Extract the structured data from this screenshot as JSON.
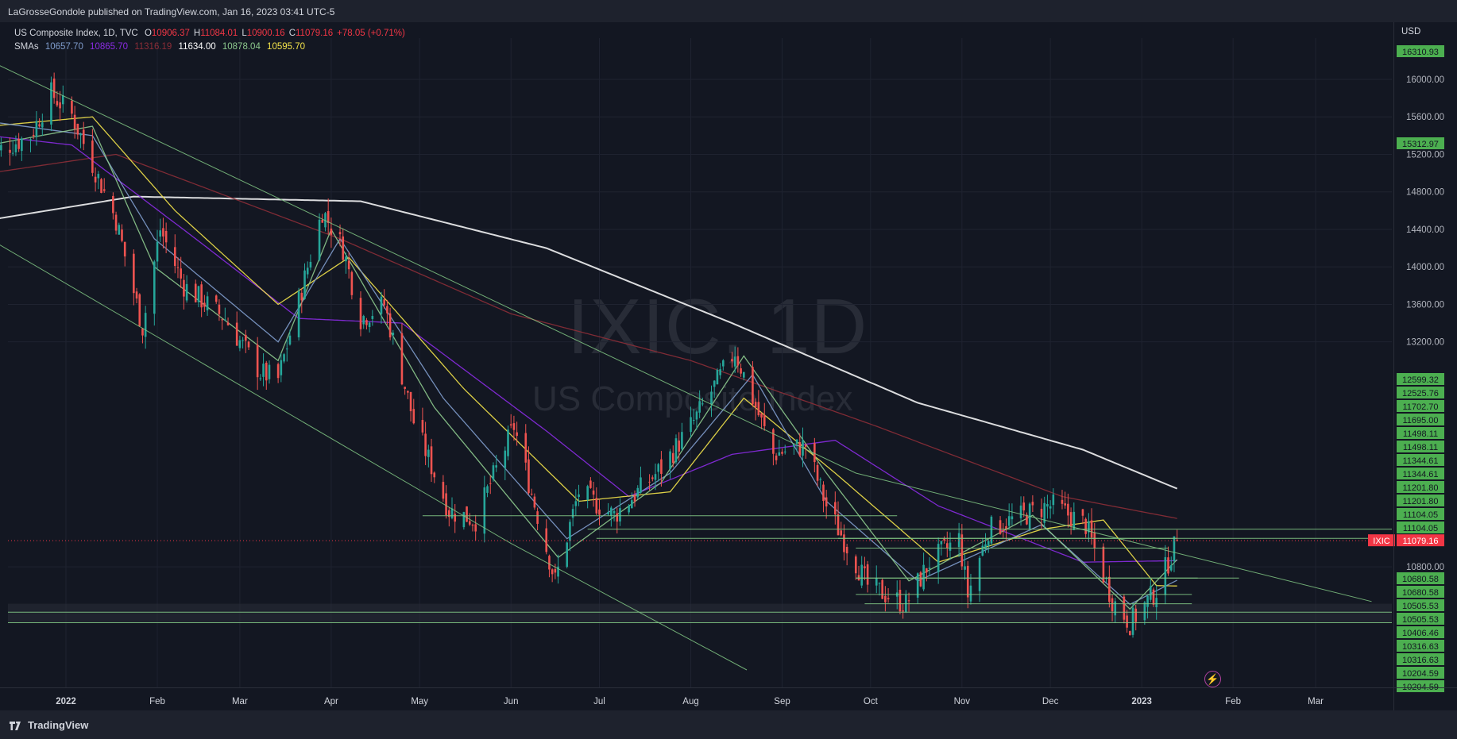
{
  "header": {
    "published": "LaGrosseGondole published on TradingView.com, Jan 16, 2023 03:41 UTC-5"
  },
  "legend": {
    "symbol": "US Composite Index, 1D, TVC",
    "open_label": "O",
    "open": "10906.37",
    "high_label": "H",
    "high": "11084.01",
    "low_label": "L",
    "low": "10900.16",
    "close_label": "C",
    "close": "11079.16",
    "change": "+78.05 (+0.71%)",
    "sma_label": "SMAs",
    "sma_values": [
      {
        "value": "10657.70",
        "color": "#7f9ccc"
      },
      {
        "value": "10865.70",
        "color": "#8a2be2"
      },
      {
        "value": "11316.19",
        "color": "#8c2d37"
      },
      {
        "value": "11634.00",
        "color": "#ffffff"
      },
      {
        "value": "10878.04",
        "color": "#8dc98d"
      },
      {
        "value": "10595.70",
        "color": "#f3e34a"
      }
    ]
  },
  "watermark": {
    "symbol": "IXIC, 1D",
    "name": "US Composite Index"
  },
  "axis": {
    "currency": "USD",
    "y_ticks": [
      "16000.00",
      "15600.00",
      "15200.00",
      "14800.00",
      "14400.00",
      "14000.00",
      "13600.00",
      "13200.00",
      "10800.00"
    ],
    "x_ticks": [
      "2022",
      "Feb",
      "Mar",
      "Apr",
      "May",
      "Jun",
      "Jul",
      "Aug",
      "Sep",
      "Oct",
      "Nov",
      "Dec",
      "2023",
      "Feb",
      "Mar"
    ],
    "price_tags": [
      "16310.93",
      "15312.97",
      "12599.32",
      "12525.76",
      "11702.70",
      "11695.00",
      "11498.11",
      "11498.11",
      "11344.61",
      "11344.61",
      "11201.80",
      "11201.80",
      "11104.05",
      "11104.05",
      "10680.58",
      "10680.58",
      "10505.53",
      "10505.53",
      "10406.46",
      "10316.63",
      "10316.63",
      "10204.59",
      "10204.59"
    ],
    "last_label": "IXIC",
    "last_price": "11079.16"
  },
  "chart_data": {
    "type": "candlestick",
    "title": "US Composite Index, 1D, TVC",
    "ylabel": "USD",
    "ylim": [
      10150,
      16450
    ],
    "scale": "linear",
    "grid": true,
    "x_start": "2021-12-06",
    "x_end": "2023-03-31",
    "last_date": "2023-01-13",
    "close_anchors": [
      [
        "2021-12-06",
        15200
      ],
      [
        "2021-12-20",
        15400
      ],
      [
        "2021-12-27",
        15850
      ],
      [
        "2022-01-03",
        15620
      ],
      [
        "2022-01-10",
        15100
      ],
      [
        "2022-01-18",
        14500
      ],
      [
        "2022-01-27",
        13350
      ],
      [
        "2022-02-02",
        14400
      ],
      [
        "2022-02-10",
        13800
      ],
      [
        "2022-02-24",
        13450
      ],
      [
        "2022-03-08",
        12870
      ],
      [
        "2022-03-14",
        12800
      ],
      [
        "2022-03-29",
        14600
      ],
      [
        "2022-04-05",
        14200
      ],
      [
        "2022-04-11",
        13450
      ],
      [
        "2022-04-19",
        13600
      ],
      [
        "2022-04-29",
        12350
      ],
      [
        "2022-05-11",
        11400
      ],
      [
        "2022-05-20",
        11300
      ],
      [
        "2022-06-02",
        12300
      ],
      [
        "2022-06-10",
        11350
      ],
      [
        "2022-06-16",
        10650
      ],
      [
        "2022-06-24",
        11600
      ],
      [
        "2022-07-06",
        11350
      ],
      [
        "2022-07-22",
        11850
      ],
      [
        "2022-08-02",
        12350
      ],
      [
        "2022-08-16",
        13100
      ],
      [
        "2022-08-29",
        12000
      ],
      [
        "2022-09-09",
        12100
      ],
      [
        "2022-09-16",
        11450
      ],
      [
        "2022-09-30",
        10600
      ],
      [
        "2022-10-13",
        10400
      ],
      [
        "2022-10-21",
        10850
      ],
      [
        "2022-10-31",
        11100
      ],
      [
        "2022-11-03",
        10500
      ],
      [
        "2022-11-10",
        11200
      ],
      [
        "2022-11-30",
        11450
      ],
      [
        "2022-12-02",
        11450
      ],
      [
        "2022-12-13",
        11250
      ],
      [
        "2022-12-22",
        10450
      ],
      [
        "2022-12-28",
        10200
      ],
      [
        "2023-01-06",
        10550
      ],
      [
        "2023-01-13",
        11079.16
      ]
    ],
    "series": [
      {
        "name": "SMA",
        "last": 10657.7,
        "anchors": [
          [
            "2021-12-06",
            15550
          ],
          [
            "2022-01-10",
            15400
          ],
          [
            "2022-01-31",
            14300
          ],
          [
            "2022-03-14",
            13200
          ],
          [
            "2022-04-04",
            14300
          ],
          [
            "2022-05-09",
            12600
          ],
          [
            "2022-06-20",
            11100
          ],
          [
            "2022-07-25",
            11800
          ],
          [
            "2022-08-22",
            12850
          ],
          [
            "2022-09-16",
            11500
          ],
          [
            "2022-10-17",
            10650
          ],
          [
            "2022-11-28",
            11250
          ],
          [
            "2022-12-28",
            10400
          ],
          [
            "2023-01-13",
            10657.7
          ]
        ]
      },
      {
        "name": "SMA",
        "last": 10865.7,
        "anchors": [
          [
            "2021-12-06",
            15400
          ],
          [
            "2022-01-03",
            15300
          ],
          [
            "2022-02-14",
            14300
          ],
          [
            "2022-03-21",
            13450
          ],
          [
            "2022-04-25",
            13400
          ],
          [
            "2022-06-13",
            12250
          ],
          [
            "2022-07-11",
            11550
          ],
          [
            "2022-08-15",
            12000
          ],
          [
            "2022-09-19",
            12150
          ],
          [
            "2022-10-24",
            11450
          ],
          [
            "2022-12-12",
            10850
          ],
          [
            "2023-01-13",
            10865.7
          ]
        ]
      },
      {
        "name": "SMA",
        "last": 11316.19,
        "anchors": [
          [
            "2021-12-06",
            15000
          ],
          [
            "2022-01-18",
            15200
          ],
          [
            "2022-04-04",
            14300
          ],
          [
            "2022-06-01",
            13500
          ],
          [
            "2022-08-01",
            13000
          ],
          [
            "2022-10-03",
            12300
          ],
          [
            "2022-12-05",
            11550
          ],
          [
            "2023-01-13",
            11316.19
          ]
        ]
      },
      {
        "name": "SMA",
        "last": 11634.0,
        "anchors": [
          [
            "2021-12-06",
            14500
          ],
          [
            "2022-01-24",
            14750
          ],
          [
            "2022-04-11",
            14700
          ],
          [
            "2022-06-13",
            14200
          ],
          [
            "2022-08-15",
            13400
          ],
          [
            "2022-10-17",
            12550
          ],
          [
            "2022-12-12",
            12050
          ],
          [
            "2023-01-13",
            11634.0
          ]
        ]
      },
      {
        "name": "SMA",
        "last": 10878.04,
        "anchors": [
          [
            "2021-12-06",
            15300
          ],
          [
            "2022-01-10",
            15500
          ],
          [
            "2022-01-31",
            14000
          ],
          [
            "2022-03-14",
            13000
          ],
          [
            "2022-04-01",
            14400
          ],
          [
            "2022-05-06",
            12500
          ],
          [
            "2022-06-17",
            10900
          ],
          [
            "2022-07-22",
            11700
          ],
          [
            "2022-08-19",
            13050
          ],
          [
            "2022-09-16",
            11800
          ],
          [
            "2022-10-14",
            10650
          ],
          [
            "2022-11-25",
            11350
          ],
          [
            "2022-12-28",
            10350
          ],
          [
            "2023-01-13",
            10878.04
          ]
        ]
      },
      {
        "name": "SMA",
        "last": 10595.7,
        "anchors": [
          [
            "2021-12-06",
            15500
          ],
          [
            "2022-01-10",
            15600
          ],
          [
            "2022-02-07",
            14600
          ],
          [
            "2022-03-14",
            13600
          ],
          [
            "2022-04-07",
            14100
          ],
          [
            "2022-05-16",
            12700
          ],
          [
            "2022-06-24",
            11500
          ],
          [
            "2022-07-25",
            11600
          ],
          [
            "2022-08-19",
            12600
          ],
          [
            "2022-09-19",
            11800
          ],
          [
            "2022-10-24",
            10850
          ],
          [
            "2022-11-28",
            11200
          ],
          [
            "2022-12-19",
            11300
          ],
          [
            "2023-01-06",
            10600
          ],
          [
            "2023-01-13",
            10595.7
          ]
        ]
      }
    ],
    "trendlines": [
      [
        [
          "2021-12-06",
          16200
        ],
        [
          "2022-09-26",
          11800
        ],
        [
          "2023-03-20",
          10430
        ]
      ],
      [
        [
          "2021-12-06",
          14300
        ],
        [
          "2022-06-01",
          11050
        ],
        [
          "2022-08-20",
          9700
        ]
      ]
    ],
    "horizontal_levels": [
      {
        "y": 11344.61,
        "from": "2022-05-02",
        "to": "2022-10-10"
      },
      {
        "y": 11201.8,
        "from": "2022-06-27",
        "to": "2023-03-31"
      },
      {
        "y": 11104.05,
        "from": "2022-06-30",
        "to": "2023-01-13"
      },
      {
        "y": 11104.05,
        "from": "2022-09-20",
        "to": "2023-03-31"
      },
      {
        "y": 11000.0,
        "from": "2022-09-26",
        "to": "2023-01-10"
      },
      {
        "y": 10680.58,
        "from": "2022-09-26",
        "to": "2023-02-03"
      },
      {
        "y": 10680.58,
        "from": "2022-09-26",
        "to": "2023-01-20"
      },
      {
        "y": 10505.53,
        "from": "2022-09-26",
        "to": "2023-01-18"
      },
      {
        "y": 10406.46,
        "from": "2022-09-29",
        "to": "2023-01-18"
      },
      {
        "y": 10316.63,
        "from": "2021-12-06",
        "to": "2023-03-31"
      },
      {
        "y": 10204.59,
        "from": "2021-12-06",
        "to": "2023-03-31"
      }
    ],
    "zone": {
      "from": 10204.59,
      "to": 10406.46
    }
  }
}
